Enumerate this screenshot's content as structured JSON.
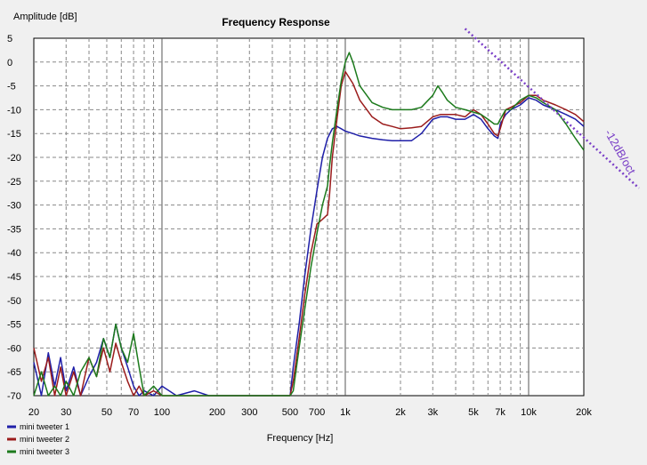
{
  "chart_data": {
    "type": "line",
    "title": "Frequency Response",
    "ylabel": "Amplitude [dB]",
    "xlabel": "Frequency [Hz]",
    "x_scale": "log",
    "xlim": [
      20,
      20000
    ],
    "ylim": [
      -70,
      5
    ],
    "grid": true,
    "x_ticks": [
      20,
      30,
      50,
      70,
      100,
      200,
      300,
      500,
      700,
      1000,
      2000,
      3000,
      5000,
      7000,
      10000,
      20000
    ],
    "x_tick_labels": [
      "20",
      "30",
      "50",
      "70",
      "100",
      "200",
      "300",
      "500",
      "700",
      "1k",
      "2k",
      "3k",
      "5k",
      "7k",
      "10k",
      "20k"
    ],
    "y_ticks": [
      5,
      0,
      -5,
      -10,
      -15,
      -20,
      -25,
      -30,
      -35,
      -40,
      -45,
      -50,
      -55,
      -60,
      -65,
      -70
    ],
    "y_tick_labels": [
      "5",
      "0",
      "-5",
      "-10",
      "-15",
      "-20",
      "-25",
      "-30",
      "-35",
      "-40",
      "-45",
      "-50",
      "-55",
      "-60",
      "-65",
      "-70"
    ],
    "legend_position": "bottom-left",
    "annotation": {
      "text": "-12dB/oct",
      "color": "#7a3fc7",
      "line": {
        "x": [
          4500,
          20000
        ],
        "y": [
          7,
          -19
        ]
      }
    },
    "series": [
      {
        "name": "mini tweeter 1",
        "color": "#1f1fa8",
        "x": [
          20,
          22,
          24,
          26,
          28,
          30,
          33,
          36,
          40,
          44,
          48,
          52,
          56,
          60,
          65,
          70,
          75,
          80,
          90,
          100,
          120,
          150,
          180,
          220,
          260,
          300,
          350,
          400,
          450,
          480,
          500,
          520,
          560,
          600,
          650,
          700,
          750,
          800,
          850,
          900,
          950,
          1000,
          1100,
          1200,
          1400,
          1600,
          1800,
          2000,
          2300,
          2600,
          3000,
          3300,
          3600,
          4000,
          4500,
          5000,
          5500,
          6000,
          6500,
          6800,
          7000,
          7500,
          8000,
          9000,
          10000,
          11000,
          12000,
          14000,
          16000,
          18000,
          20000
        ],
        "y": [
          -63,
          -70,
          -61,
          -68,
          -62,
          -69,
          -64,
          -70,
          -66,
          -63,
          -58,
          -62,
          -55,
          -60,
          -64,
          -68,
          -70,
          -69,
          -70,
          -68,
          -70,
          -69,
          -70,
          -70,
          -70,
          -70,
          -70,
          -70,
          -70,
          -70,
          -70,
          -64,
          -55,
          -45,
          -35,
          -27,
          -20,
          -16,
          -14,
          -13.5,
          -14,
          -14.5,
          -15,
          -15.5,
          -16,
          -16.3,
          -16.5,
          -16.5,
          -16.5,
          -15,
          -12,
          -11.5,
          -11.5,
          -12,
          -12,
          -11,
          -12,
          -14,
          -15.5,
          -16,
          -13,
          -11,
          -10,
          -9,
          -7.5,
          -8,
          -9,
          -10,
          -11,
          -12,
          -13.5
        ]
      },
      {
        "name": "mini tweeter 2",
        "color": "#9b1c1c",
        "x": [
          20,
          22,
          24,
          26,
          28,
          30,
          33,
          36,
          40,
          44,
          48,
          52,
          56,
          60,
          65,
          70,
          75,
          80,
          90,
          100,
          120,
          150,
          180,
          220,
          260,
          300,
          350,
          400,
          450,
          480,
          500,
          520,
          560,
          600,
          650,
          700,
          750,
          800,
          820,
          850,
          900,
          950,
          1000,
          1100,
          1200,
          1400,
          1600,
          1800,
          2000,
          2300,
          2600,
          3000,
          3300,
          3600,
          4000,
          4500,
          5000,
          5500,
          6000,
          6500,
          6800,
          7000,
          7500,
          8000,
          9000,
          10000,
          11000,
          12000,
          14000,
          16000,
          18000,
          20000
        ],
        "y": [
          -60,
          -67,
          -62,
          -70,
          -64,
          -70,
          -65,
          -70,
          -62,
          -66,
          -60,
          -65,
          -59,
          -63,
          -67,
          -70,
          -68,
          -70,
          -69,
          -70,
          -70,
          -70,
          -70,
          -70,
          -70,
          -70,
          -70,
          -70,
          -70,
          -70,
          -70,
          -67,
          -58,
          -49,
          -40,
          -34,
          -33,
          -32,
          -28,
          -20,
          -12,
          -5,
          -2,
          -4.5,
          -8,
          -11.5,
          -13,
          -13.5,
          -14,
          -13.8,
          -13.5,
          -11.5,
          -11,
          -11,
          -11,
          -11.5,
          -10,
          -11,
          -13,
          -15,
          -15.5,
          -14,
          -10,
          -9.5,
          -8.5,
          -7,
          -7,
          -8,
          -9,
          -10,
          -11,
          -12.5
        ]
      },
      {
        "name": "mini tweeter 3",
        "color": "#1c7a1c",
        "x": [
          20,
          22,
          24,
          26,
          28,
          30,
          33,
          36,
          40,
          44,
          48,
          52,
          56,
          60,
          65,
          70,
          75,
          80,
          90,
          100,
          120,
          150,
          180,
          220,
          260,
          300,
          350,
          400,
          450,
          480,
          500,
          520,
          560,
          600,
          650,
          700,
          750,
          800,
          820,
          850,
          900,
          950,
          1000,
          1050,
          1100,
          1200,
          1400,
          1600,
          1800,
          2000,
          2300,
          2600,
          3000,
          3200,
          3400,
          3600,
          4000,
          4500,
          5000,
          5500,
          6000,
          6500,
          6800,
          7000,
          7500,
          8000,
          9000,
          10000,
          11000,
          12000,
          14000,
          16000,
          18000,
          20000
        ],
        "y": [
          -70,
          -65,
          -70,
          -68,
          -70,
          -67,
          -70,
          -65,
          -62,
          -66,
          -58,
          -62,
          -55,
          -60,
          -63,
          -57,
          -64,
          -70,
          -68,
          -70,
          -70,
          -70,
          -70,
          -70,
          -70,
          -70,
          -70,
          -70,
          -70,
          -70,
          -70,
          -69,
          -60,
          -52,
          -43,
          -36,
          -30,
          -26,
          -22,
          -17,
          -10,
          -4,
          0,
          2,
          0,
          -5,
          -8.5,
          -9.5,
          -10,
          -10,
          -10,
          -9.5,
          -7,
          -5,
          -6.5,
          -8,
          -9.5,
          -10,
          -10.5,
          -11,
          -12,
          -13,
          -13,
          -12,
          -10,
          -10,
          -8,
          -7,
          -7.5,
          -8.5,
          -10,
          -13,
          -16,
          -18.5
        ]
      }
    ]
  }
}
